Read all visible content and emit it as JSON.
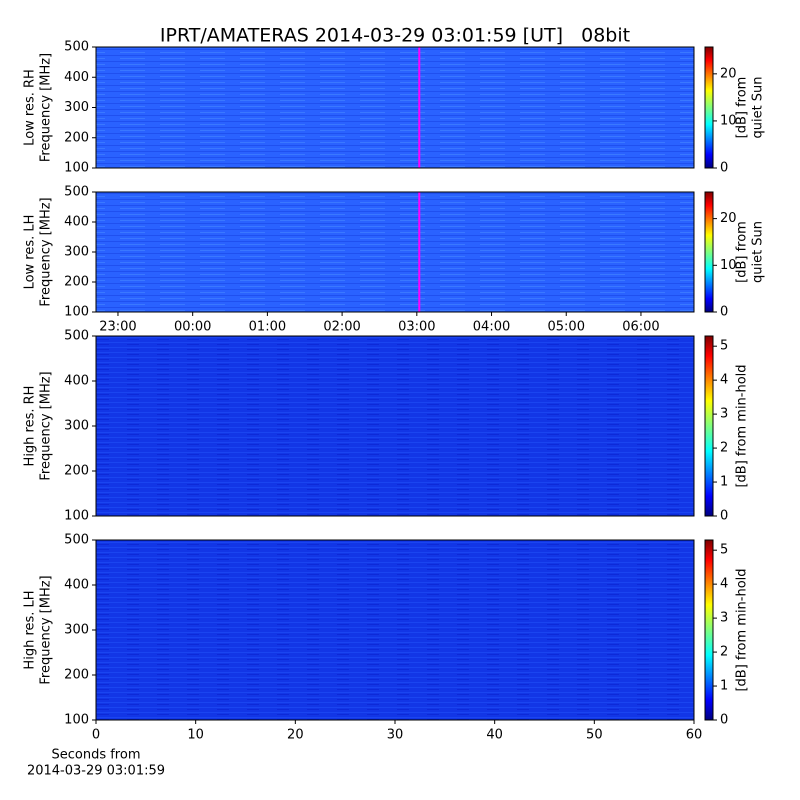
{
  "chart_data": [
    {
      "type": "heatmap",
      "title": "IPRT/AMATERAS 2014-03-29 03:01:59 [UT]   08bit",
      "ylabel": [
        "Low res. RH",
        "Frequency [MHz]"
      ],
      "ylim": [
        100,
        500
      ],
      "yticks": [
        100,
        200,
        300,
        400,
        500
      ],
      "xlim": [
        22.706,
        30.71
      ],
      "vline": {
        "value": 27.033,
        "color": "#ff00ff"
      },
      "colorbar": {
        "label": [
          "[dB] from",
          "quiet Sun"
        ],
        "clim": [
          0,
          25.7
        ],
        "ticks": [
          0,
          10,
          20
        ],
        "colormap": "jet"
      }
    },
    {
      "type": "heatmap",
      "ylabel": [
        "Low res. LH",
        "Frequency [MHz]"
      ],
      "ylim": [
        100,
        500
      ],
      "yticks": [
        100,
        200,
        300,
        400,
        500
      ],
      "xlim": [
        22.706,
        30.71
      ],
      "xticks": [
        {
          "value": 23,
          "label": "23:00"
        },
        {
          "value": 24,
          "label": "00:00"
        },
        {
          "value": 25,
          "label": "01:00"
        },
        {
          "value": 26,
          "label": "02:00"
        },
        {
          "value": 27,
          "label": "03:00"
        },
        {
          "value": 28,
          "label": "04:00"
        },
        {
          "value": 29,
          "label": "05:00"
        },
        {
          "value": 30,
          "label": "06:00"
        }
      ],
      "vline": {
        "value": 27.033,
        "color": "#ff00ff"
      },
      "colorbar": {
        "label": [
          "[dB] from",
          "quiet Sun"
        ],
        "clim": [
          0,
          25.7
        ],
        "ticks": [
          0,
          10,
          20
        ],
        "colormap": "jet"
      }
    },
    {
      "type": "heatmap",
      "ylabel": [
        "High res. RH",
        "Frequency [MHz]"
      ],
      "ylim": [
        100,
        500
      ],
      "yticks": [
        100,
        200,
        300,
        400,
        500
      ],
      "xlim": [
        0,
        60
      ],
      "colorbar": {
        "label": [
          "[dB] from min-hold"
        ],
        "clim": [
          0,
          5.3
        ],
        "ticks": [
          0,
          1,
          2,
          3,
          4,
          5
        ],
        "colormap": "jet"
      }
    },
    {
      "type": "heatmap",
      "ylabel": [
        "High res. LH",
        "Frequency [MHz]"
      ],
      "ylim": [
        100,
        500
      ],
      "yticks": [
        100,
        200,
        300,
        400,
        500
      ],
      "xlim": [
        0,
        60
      ],
      "xticks": [
        0,
        10,
        20,
        30,
        40,
        50,
        60
      ],
      "xlabel": [
        "Seconds from",
        "2014-03-29 03:01:59"
      ],
      "colorbar": {
        "label": [
          "[dB] from min-hold"
        ],
        "clim": [
          0,
          5.3
        ],
        "ticks": [
          0,
          1,
          2,
          3,
          4,
          5
        ],
        "colormap": "jet"
      }
    }
  ]
}
